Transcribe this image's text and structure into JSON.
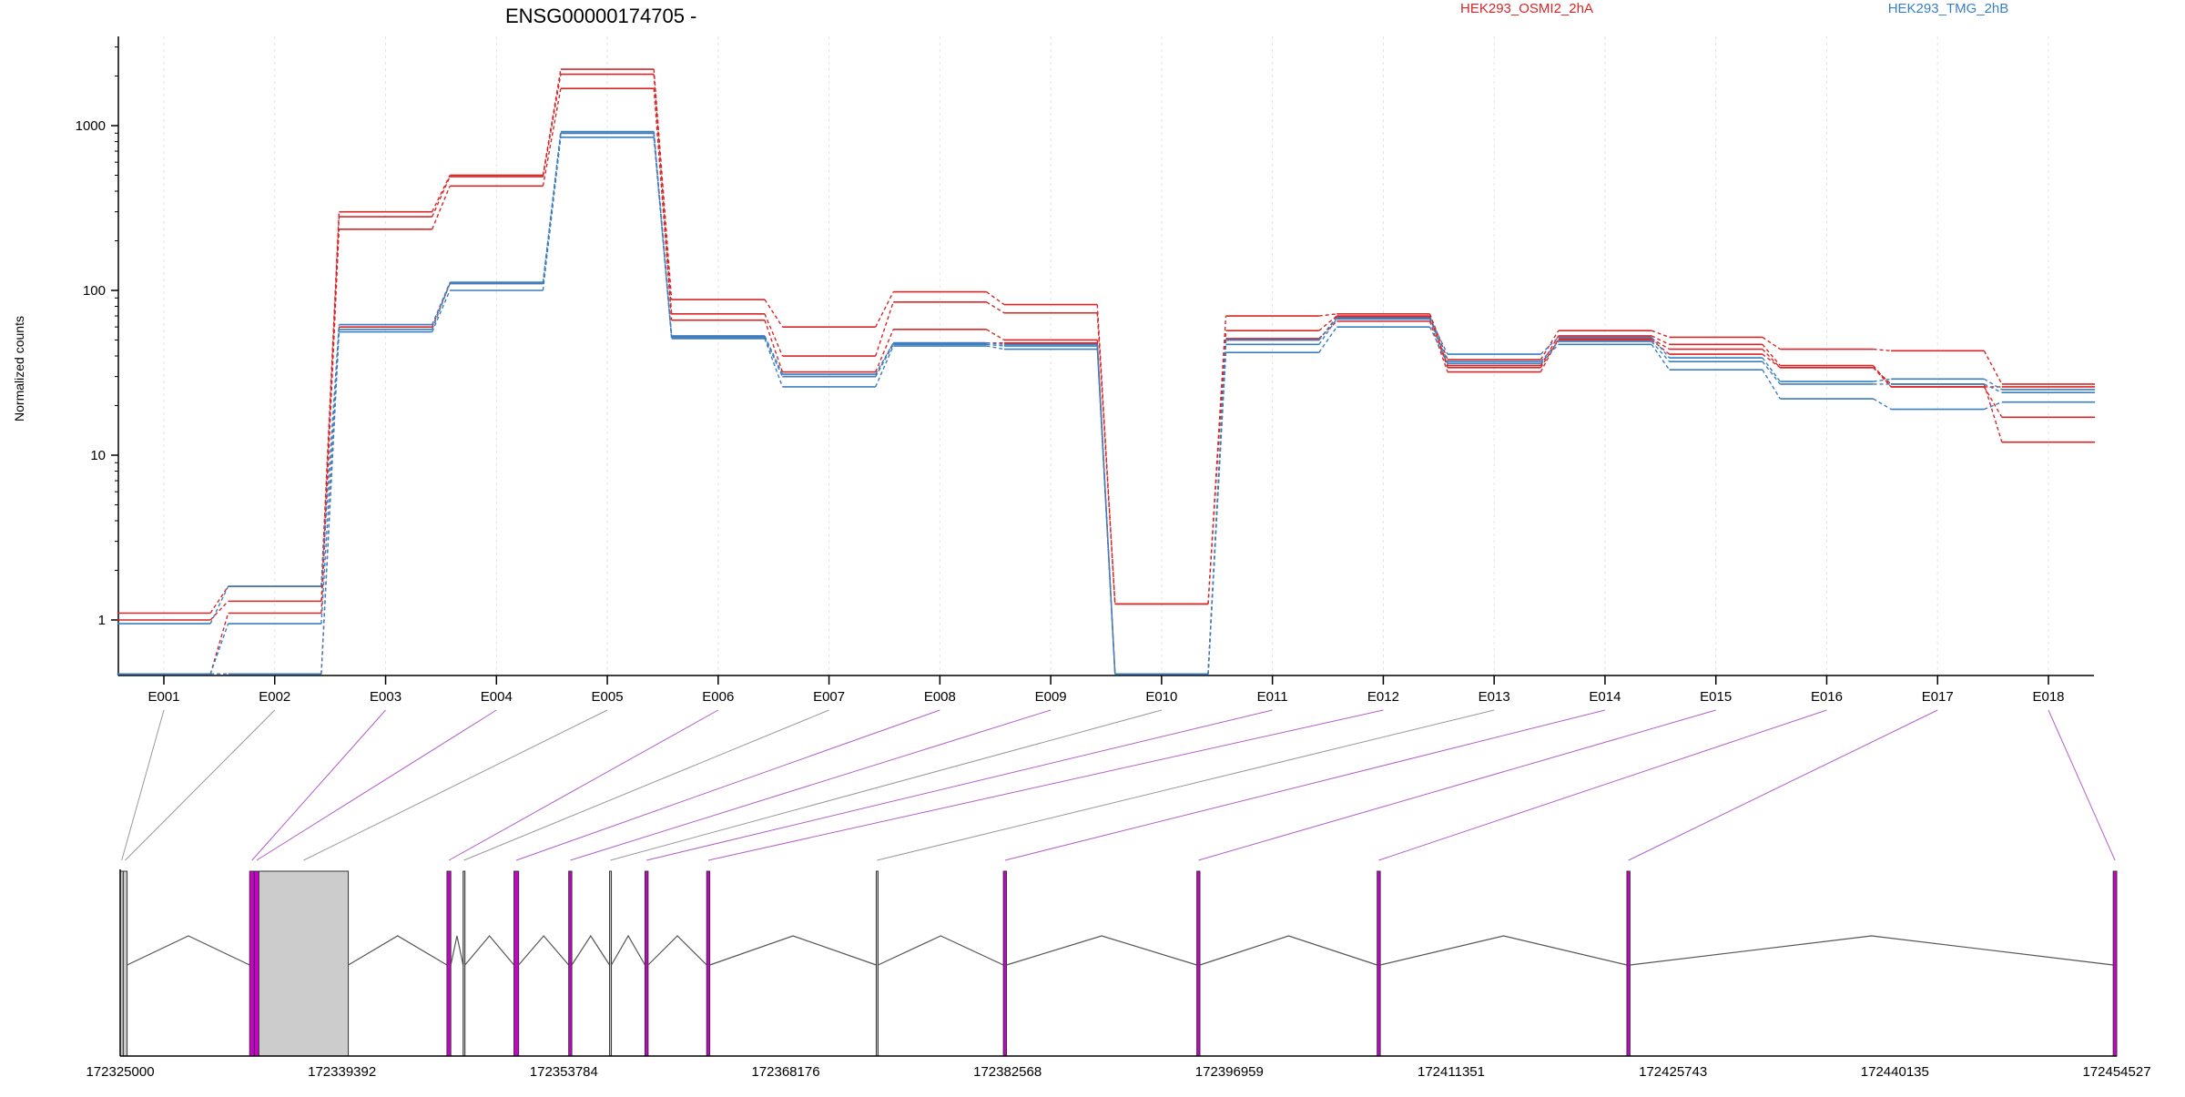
{
  "chart_data": {
    "type": "line",
    "title": "ENSG00000174705 -",
    "ylabel": "Normalized counts",
    "y_scale": "log",
    "y_ticks": [
      1,
      10,
      100,
      1000
    ],
    "y_tick_labels": [
      "1",
      "10",
      "100",
      "1000"
    ],
    "ylim": [
      0.45,
      3000
    ],
    "grid": "vertical dotted at exon centers",
    "legend_placement": "top-right",
    "categories": [
      "E001",
      "E002",
      "E003",
      "E004",
      "E005",
      "E006",
      "E007",
      "E008",
      "E009",
      "E010",
      "E011",
      "E012",
      "E013",
      "E014",
      "E015",
      "E016",
      "E017",
      "E018"
    ],
    "colors": {
      "HEK293_OSMI2_2hA": "#d62728",
      "HEK293_TMG_2hB": "#3a7fbf",
      "gene_model": "#555555",
      "exon_fill": "#cccccc",
      "exon_highlight": "#cc00cc",
      "connector_grey": "#999999",
      "connector_magenta": "#b45fc8"
    },
    "series": [
      {
        "name": "HEK293_OSMI2_2hA",
        "group": "HEK293_OSMI2_2hA",
        "values": [
          1.1,
          1.6,
          300,
          500,
          2200,
          88,
          60,
          98,
          82,
          1.25,
          70,
          72,
          38,
          57,
          52,
          44,
          43,
          27
        ]
      },
      {
        "group": "HEK293_OSMI2_2hA",
        "values": [
          1.0,
          1.3,
          280,
          490,
          2050,
          72,
          40,
          85,
          73,
          1.25,
          57,
          70,
          35,
          53,
          47,
          35,
          26,
          26
        ]
      },
      {
        "group": "HEK293_OSMI2_2hA",
        "values": [
          0.47,
          1.1,
          235,
          430,
          1680,
          66,
          32,
          58,
          50,
          0.47,
          51,
          65,
          32,
          51,
          44,
          34,
          26,
          17
        ]
      },
      {
        "group": "HEK293_OSMI2_2hA",
        "values": [
          0.47,
          0.47,
          60,
          110,
          900,
          52,
          30,
          48,
          48,
          0.47,
          50,
          69,
          34,
          50,
          41,
          34,
          27,
          12
        ]
      },
      {
        "name": "HEK293_TMG_2hB",
        "group": "HEK293_TMG_2hB",
        "values": [
          0.95,
          1.6,
          62,
          112,
          920,
          53,
          31,
          48,
          47,
          0.47,
          50,
          68,
          41,
          52,
          39,
          28,
          29,
          25
        ]
      },
      {
        "group": "HEK293_TMG_2hB",
        "values": [
          0.47,
          0.95,
          58,
          110,
          900,
          52,
          30,
          47,
          46,
          0.47,
          47,
          67,
          37,
          49,
          37,
          27,
          27,
          24
        ]
      },
      {
        "group": "HEK293_TMG_2hB",
        "values": [
          0.47,
          0.47,
          56,
          100,
          850,
          51,
          26,
          46,
          44,
          0.47,
          42,
          60,
          36,
          47,
          33,
          22,
          19,
          21
        ]
      }
    ],
    "genomic_axis": {
      "tick_values": [
        172325000,
        172339392,
        172353784,
        172368176,
        172382568,
        172396959,
        172411351,
        172425743,
        172440135,
        172454527
      ],
      "tick_labels": [
        "172325000",
        "172339392",
        "172353784",
        "172368176",
        "172382568",
        "172396959",
        "172411351",
        "172425743",
        "172440135",
        "172454527"
      ],
      "range": [
        172325000,
        172454527
      ]
    },
    "exons": [
      {
        "id": "E001",
        "start": 172325000,
        "end": 172325200,
        "highlight": false
      },
      {
        "id": "E002",
        "start": 172325200,
        "end": 172325450,
        "highlight": false
      },
      {
        "id": "E003",
        "start": 172333400,
        "end": 172333700,
        "highlight": true
      },
      {
        "id": "E004",
        "start": 172333700,
        "end": 172334000,
        "highlight": true
      },
      {
        "id": "E005",
        "start": 172334000,
        "end": 172339800,
        "highlight": false
      },
      {
        "id": "E006",
        "start": 172346200,
        "end": 172346450,
        "highlight": true
      },
      {
        "id": "E007",
        "start": 172347250,
        "end": 172347350,
        "highlight": false
      },
      {
        "id": "E008",
        "start": 172350550,
        "end": 172350850,
        "highlight": true
      },
      {
        "id": "E009",
        "start": 172354100,
        "end": 172354300,
        "highlight": true
      },
      {
        "id": "E010",
        "start": 172356750,
        "end": 172356850,
        "highlight": false
      },
      {
        "id": "E011",
        "start": 172359050,
        "end": 172359250,
        "highlight": true
      },
      {
        "id": "E012",
        "start": 172363050,
        "end": 172363250,
        "highlight": true
      },
      {
        "id": "E013",
        "start": 172374050,
        "end": 172374150,
        "highlight": false
      },
      {
        "id": "E014",
        "start": 172382300,
        "end": 172382500,
        "highlight": true
      },
      {
        "id": "E015",
        "start": 172394850,
        "end": 172395050,
        "highlight": true
      },
      {
        "id": "E016",
        "start": 172406550,
        "end": 172406750,
        "highlight": true
      },
      {
        "id": "E017",
        "start": 172422750,
        "end": 172422950,
        "highlight": true
      },
      {
        "id": "E018",
        "start": 172454300,
        "end": 172454527,
        "highlight": true
      }
    ]
  }
}
